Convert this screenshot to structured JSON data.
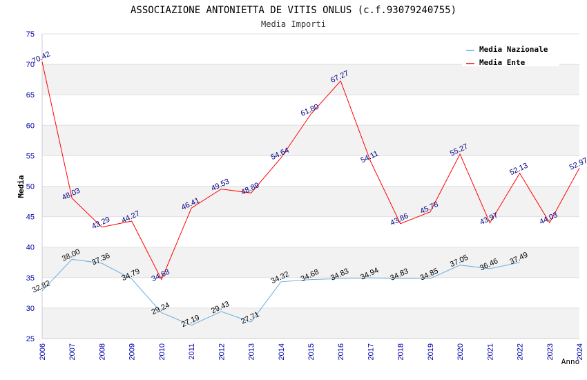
{
  "chart_data": {
    "type": "line",
    "title": "ASSOCIAZIONE ANTONIETTA DE VITIS ONLUS (c.f.93079240755)",
    "subtitle": "Media Importi",
    "xlabel": "Anno",
    "ylabel": "Media",
    "ylim": [
      25,
      75
    ],
    "yticks": [
      "25",
      "30",
      "35",
      "40",
      "45",
      "50",
      "55",
      "60",
      "65",
      "70",
      "75"
    ],
    "categories": [
      "2006",
      "2007",
      "2008",
      "2009",
      "2010",
      "2011",
      "2012",
      "2013",
      "2014",
      "2015",
      "2016",
      "2017",
      "2018",
      "2019",
      "2020",
      "2021",
      "2022",
      "2023",
      "2024"
    ],
    "legend_position": "top-right",
    "series": [
      {
        "name": "Media Nazionale",
        "color": "#6aaee0",
        "label_color": "#000000",
        "values": [
          32.82,
          38.0,
          37.36,
          34.79,
          29.24,
          27.19,
          29.43,
          27.71,
          34.32,
          34.68,
          34.83,
          34.94,
          34.83,
          34.85,
          37.05,
          36.46,
          37.49,
          null,
          null
        ],
        "labels": [
          "32.82",
          "38.00",
          "37.36",
          "34.79",
          "29.24",
          "27.19",
          "29.43",
          "27.71",
          "34.32",
          "34.68",
          "34.83",
          "34.94",
          "34.83",
          "34.85",
          "37.05",
          "36.46",
          "37.49",
          null,
          null
        ]
      },
      {
        "name": "Media Ente",
        "color": "#ff0000",
        "label_color": "#000080",
        "values": [
          70.42,
          48.03,
          43.29,
          44.27,
          34.68,
          46.41,
          49.53,
          48.89,
          54.64,
          61.8,
          67.27,
          54.11,
          43.86,
          45.78,
          55.27,
          43.97,
          52.13,
          44.03,
          52.97
        ],
        "labels": [
          "70.42",
          "48.03",
          "43.29",
          "44.27",
          "34.68",
          "46.41",
          "49.53",
          "48.89",
          "54.64",
          "61.80",
          "67.27",
          "54.11",
          "43.86",
          "45.78",
          "55.27",
          "43.97",
          "52.13",
          "44.03",
          "52.97"
        ]
      }
    ]
  }
}
